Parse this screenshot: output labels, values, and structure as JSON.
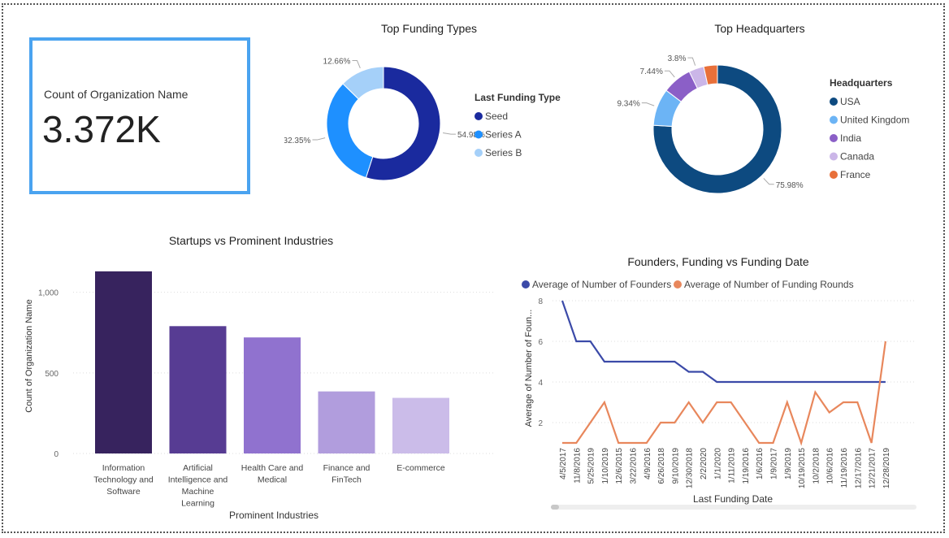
{
  "kpi": {
    "label": "Count of Organization Name",
    "value": "3.372K"
  },
  "colors": {
    "funding": [
      "#1a2a9e",
      "#1e90ff",
      "#a5d0f9"
    ],
    "hq": [
      "#0d4a80",
      "#6cb4f5",
      "#8b5fc7",
      "#cbb6e8",
      "#e8703a"
    ],
    "industries": [
      "#37235e",
      "#573c93",
      "#9072cf",
      "#b19ddd",
      "#cbbce9"
    ],
    "founders": "#3b4aa8",
    "rounds": "#e8875c"
  },
  "chart_data": [
    {
      "type": "pie",
      "variant": "donut",
      "title": "Top Funding Types",
      "legend_title": "Last Funding Type",
      "legend_placement": "right",
      "labels": [
        "Seed",
        "Series A",
        "Series B"
      ],
      "values": [
        54.98,
        32.35,
        12.66
      ],
      "value_labels": [
        "54.98%",
        "32.35%",
        "12.66%"
      ]
    },
    {
      "type": "pie",
      "variant": "donut",
      "title": "Top Headquarters",
      "legend_title": "Headquarters",
      "legend_placement": "right",
      "labels": [
        "USA",
        "United Kingdom",
        "India",
        "Canada",
        "France"
      ],
      "values": [
        75.98,
        9.34,
        7.44,
        3.8,
        3.44
      ],
      "value_labels": [
        "75.98%",
        "9.34%",
        "7.44%",
        "3.8%",
        ""
      ]
    },
    {
      "type": "bar",
      "title": "Startups vs Prominent Industries",
      "xlabel": "Prominent Industries",
      "ylabel": "Count of Organization Name",
      "categories": [
        "Information Technology and Software",
        "Artificial Intelligence and Machine Learning",
        "Health Care and Medical",
        "Finance and FinTech",
        "E-commerce"
      ],
      "category_lines": [
        [
          "Information",
          "Technology and",
          "Software"
        ],
        [
          "Artificial",
          "Intelligence and",
          "Machine",
          "Learning"
        ],
        [
          "Health Care and",
          "Medical"
        ],
        [
          "Finance and",
          "FinTech"
        ],
        [
          "E-commerce"
        ]
      ],
      "values": [
        1130,
        790,
        720,
        385,
        345
      ],
      "ylim": [
        0,
        1200
      ],
      "yticks": [
        0,
        500,
        1000
      ],
      "ytick_labels": [
        "0",
        "500",
        "1,000"
      ],
      "grid": true
    },
    {
      "type": "line",
      "title": "Founders, Funding vs Funding Date",
      "xlabel": "Last Funding Date",
      "ylabel": "Average of Number of Foun...",
      "legend_placement": "top-left",
      "ylim": [
        1,
        8
      ],
      "yticks": [
        2,
        4,
        6,
        8
      ],
      "ytick_labels": [
        "2",
        "4",
        "6",
        "8"
      ],
      "x_tick_labels": [
        "4/5/2017",
        "11/8/2016",
        "5/25/2019",
        "1/10/2019",
        "12/6/2015",
        "3/22/2016",
        "4/9/2016",
        "6/26/2018",
        "9/10/2019",
        "12/30/2018",
        "2/2/2020",
        "1/1/2020",
        "1/11/2019",
        "1/19/2016",
        "1/6/2016",
        "1/9/2017",
        "1/9/2019",
        "10/19/2015",
        "10/2/2018",
        "10/6/2016",
        "11/19/2016",
        "12/17/2016",
        "12/21/2017",
        "12/28/2019"
      ],
      "series": [
        {
          "name": "Average of Number of Founders",
          "values": [
            8,
            6,
            6,
            5,
            5,
            5,
            5,
            5,
            5,
            4.5,
            4.5,
            4,
            4,
            4,
            4,
            4,
            4,
            4,
            4,
            4,
            4,
            4,
            4,
            4
          ]
        },
        {
          "name": "Average of Number of Funding Rounds",
          "values": [
            1,
            1,
            2,
            3,
            1,
            1,
            1,
            2,
            2,
            3,
            2,
            3,
            3,
            2,
            1,
            1,
            3,
            1,
            3.5,
            2.5,
            3,
            3,
            1,
            6
          ]
        }
      ]
    }
  ]
}
